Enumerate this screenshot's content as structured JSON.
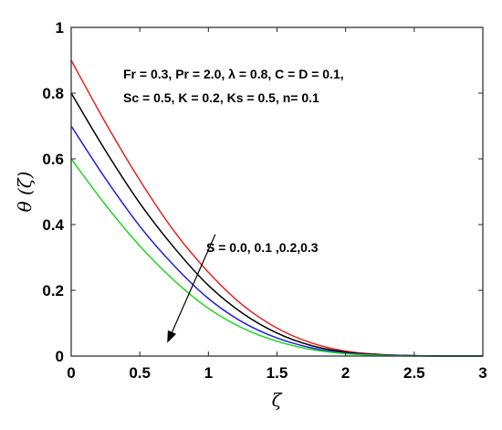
{
  "chart_data": {
    "type": "line",
    "title": "",
    "xlabel": "ζ",
    "ylabel": "θ (ζ)",
    "xlim": [
      0,
      3
    ],
    "ylim": [
      0,
      1
    ],
    "grid": false,
    "x_ticks": [
      "0",
      "0.5",
      "1",
      "1.5",
      "2",
      "2.5",
      "3"
    ],
    "y_ticks": [
      "0",
      "0.2",
      "0.4",
      "0.6",
      "0.8",
      "1"
    ],
    "series": [
      {
        "color": "#e8201e",
        "x": [
          0,
          0.25,
          0.5,
          0.75,
          1.0,
          1.25,
          1.5,
          1.75,
          2.0,
          2.25,
          2.5,
          2.75,
          3.0
        ],
        "y": [
          0.9,
          0.71,
          0.535,
          0.38,
          0.255,
          0.155,
          0.085,
          0.04,
          0.015,
          0.005,
          0.001,
          0.0,
          0.0
        ]
      },
      {
        "color": "#000000",
        "x": [
          0,
          0.25,
          0.5,
          0.75,
          1.0,
          1.25,
          1.5,
          1.75,
          2.0,
          2.25,
          2.5,
          2.75,
          3.0
        ],
        "y": [
          0.8,
          0.625,
          0.465,
          0.33,
          0.215,
          0.13,
          0.07,
          0.032,
          0.012,
          0.004,
          0.001,
          0.0,
          0.0
        ]
      },
      {
        "color": "#1f1fe6",
        "x": [
          0,
          0.25,
          0.5,
          0.75,
          1.0,
          1.25,
          1.5,
          1.75,
          2.0,
          2.25,
          2.5,
          2.75,
          3.0
        ],
        "y": [
          0.7,
          0.54,
          0.395,
          0.275,
          0.175,
          0.103,
          0.055,
          0.025,
          0.009,
          0.003,
          0.001,
          0.0,
          0.0
        ]
      },
      {
        "color": "#22d622",
        "x": [
          0,
          0.25,
          0.5,
          0.75,
          1.0,
          1.25,
          1.5,
          1.75,
          2.0,
          2.25,
          2.5,
          2.75,
          3.0
        ],
        "y": [
          0.6,
          0.46,
          0.335,
          0.23,
          0.145,
          0.085,
          0.045,
          0.02,
          0.007,
          0.002,
          0.0,
          0.0,
          0.0
        ]
      }
    ],
    "annotations": [
      {
        "text": "Fr = 0.3, Pr = 2.0, λ = 0.8, C = D = 0.1,"
      },
      {
        "text": "Sc = 0.5, K = 0.2, Ks = 0.5, n= 0.1"
      },
      {
        "text": "S = 0.0, 0.1 ,0.2,0.3"
      }
    ],
    "arrow": {
      "from": [
        1.05,
        0.37
      ],
      "to": [
        0.7,
        0.04
      ]
    }
  }
}
